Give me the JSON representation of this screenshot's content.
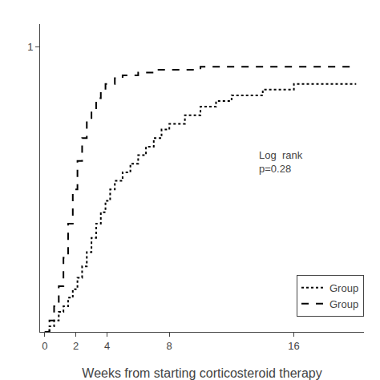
{
  "chart_data": {
    "type": "step",
    "xlabel": "Weeks from starting corticosteroid therapy",
    "xlim": [
      -0.3,
      20.5
    ],
    "ylim": [
      0,
      1.08
    ],
    "xticks": [
      0,
      2,
      4,
      8,
      16
    ],
    "yticks": [
      1
    ],
    "grid": false,
    "legend": "lower right",
    "annotation": "Log  rank\np=0.28",
    "series": [
      {
        "name": "Group",
        "color": "#000000",
        "line_style": "dotted",
        "x": [
          0,
          0.3,
          0.6,
          0.9,
          1.2,
          1.5,
          1.8,
          2.1,
          2.4,
          2.7,
          3.0,
          3.3,
          3.6,
          3.9,
          4.2,
          4.5,
          5.0,
          5.5,
          6.0,
          6.5,
          7.0,
          7.5,
          8.0,
          9.0,
          10.0,
          11.0,
          12.0,
          14.0,
          16.0,
          18.0,
          20.0
        ],
        "values": [
          0,
          0.02,
          0.04,
          0.07,
          0.09,
          0.12,
          0.15,
          0.19,
          0.23,
          0.28,
          0.33,
          0.38,
          0.42,
          0.46,
          0.5,
          0.53,
          0.56,
          0.59,
          0.62,
          0.65,
          0.68,
          0.71,
          0.73,
          0.76,
          0.79,
          0.81,
          0.83,
          0.85,
          0.87,
          0.87,
          0.87
        ]
      },
      {
        "name": "Group",
        "color": "#000000",
        "line_style": "dashed",
        "x": [
          0,
          0.3,
          0.6,
          0.9,
          1.2,
          1.5,
          1.8,
          2.1,
          2.4,
          2.7,
          3.0,
          3.3,
          3.6,
          3.9,
          4.5,
          5.0,
          6.0,
          7.0,
          8.0,
          10.0,
          12.0,
          14.0,
          16.0,
          18.0,
          20.0
        ],
        "values": [
          0,
          0.04,
          0.09,
          0.16,
          0.26,
          0.38,
          0.5,
          0.6,
          0.68,
          0.74,
          0.78,
          0.82,
          0.85,
          0.87,
          0.89,
          0.9,
          0.91,
          0.92,
          0.92,
          0.93,
          0.93,
          0.93,
          0.93,
          0.93,
          0.93
        ]
      }
    ]
  }
}
